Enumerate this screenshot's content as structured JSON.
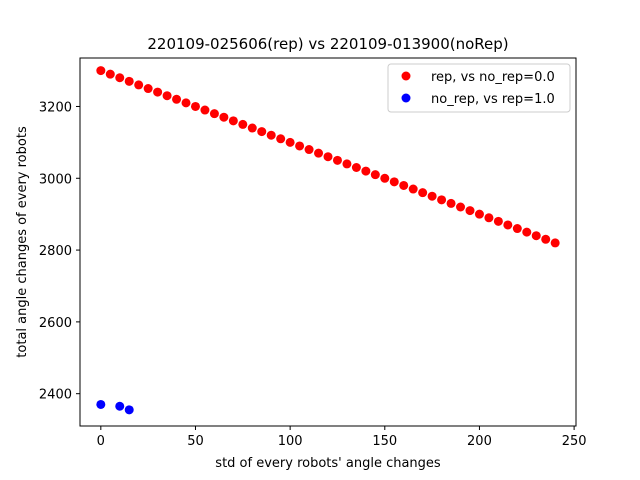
{
  "chart_data": {
    "type": "scatter",
    "title": "220109-025606(rep) vs 220109-013900(noRep)",
    "xlabel": "std of every robots' angle changes",
    "ylabel": "total angle changes of every robots",
    "xlim": [
      -11,
      251
    ],
    "ylim": [
      2310,
      3335
    ],
    "xticks": [
      0,
      50,
      100,
      150,
      200,
      250
    ],
    "yticks": [
      2400,
      2600,
      2800,
      3000,
      3200
    ],
    "legend_position": "top-right",
    "grid": false,
    "series": [
      {
        "name": "rep, vs no_rep=0.0",
        "color": "#ff0000",
        "x": [
          0,
          5,
          10,
          15,
          20,
          25,
          30,
          35,
          40,
          45,
          50,
          55,
          60,
          65,
          70,
          75,
          80,
          85,
          90,
          95,
          100,
          105,
          110,
          115,
          120,
          125,
          130,
          135,
          140,
          145,
          150,
          155,
          160,
          165,
          170,
          175,
          180,
          185,
          190,
          195,
          200,
          205,
          210,
          215,
          220,
          225,
          230,
          235,
          240
        ],
        "y": [
          3300,
          3290,
          3280,
          3270,
          3260,
          3250,
          3240,
          3230,
          3220,
          3210,
          3200,
          3190,
          3180,
          3170,
          3160,
          3150,
          3140,
          3130,
          3120,
          3110,
          3100,
          3090,
          3080,
          3070,
          3060,
          3050,
          3040,
          3030,
          3020,
          3010,
          3000,
          2990,
          2980,
          2970,
          2960,
          2950,
          2940,
          2930,
          2920,
          2910,
          2900,
          2890,
          2880,
          2870,
          2860,
          2850,
          2840,
          2830,
          2820
        ]
      },
      {
        "name": "no_rep, vs rep=1.0",
        "color": "#0000ff",
        "x": [
          0,
          10,
          15
        ],
        "y": [
          2370,
          2365,
          2355
        ]
      }
    ]
  }
}
